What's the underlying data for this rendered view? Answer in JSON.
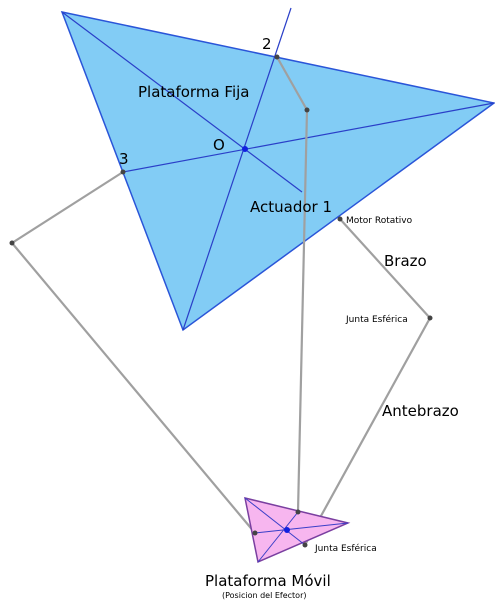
{
  "labels": {
    "fixed_platform": "Plataforma Fija",
    "origin": "O",
    "joint2": "2",
    "joint3": "3",
    "actuator": "Actuador 1",
    "motor": "Motor Rotativo",
    "arm": "Brazo",
    "spherical_joint_top": "Junta Esférica",
    "forearm": "Antebrazo",
    "spherical_joint_bottom": "Junta Esférica",
    "mobile_platform": "Plataforma Móvil",
    "effector": "(Posicion del Efector)"
  }
}
